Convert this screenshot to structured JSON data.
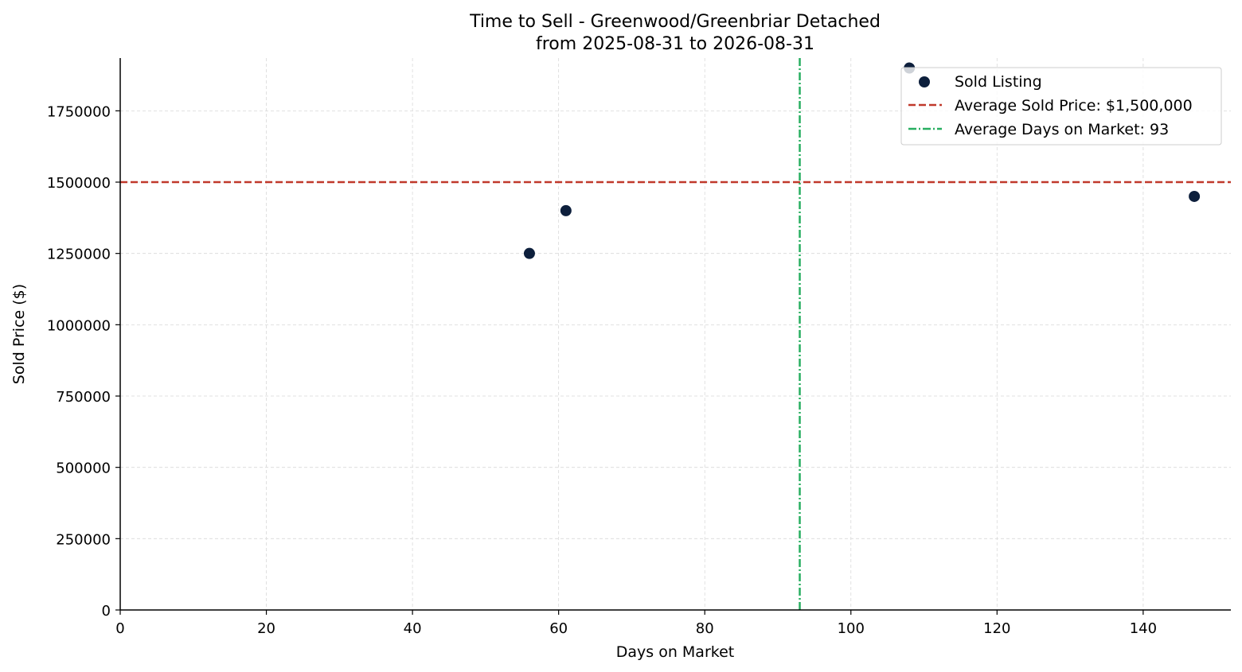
{
  "chart_data": {
    "type": "scatter",
    "title": "Time to Sell - Greenwood/Greenbriar Detached",
    "subtitle": "from 2025-08-31 to 2026-08-31",
    "xlabel": "Days on Market",
    "ylabel": "Sold Price ($)",
    "xlim": [
      0,
      152
    ],
    "ylim": [
      0,
      1935000
    ],
    "xticks": [
      0,
      20,
      40,
      60,
      80,
      100,
      120,
      140
    ],
    "yticks": [
      0,
      250000,
      500000,
      750000,
      1000000,
      1250000,
      1500000,
      1750000
    ],
    "grid": true,
    "legend_position": "top-right",
    "series": [
      {
        "name": "Sold Listing",
        "color": "#0d1f3c",
        "points": [
          {
            "x": 56,
            "y": 1250000
          },
          {
            "x": 61,
            "y": 1400000
          },
          {
            "x": 108,
            "y": 1900000
          },
          {
            "x": 147,
            "y": 1450000
          }
        ]
      }
    ],
    "reference_lines": [
      {
        "name": "Average Sold Price: $1,500,000",
        "orientation": "horizontal",
        "value": 1500000,
        "color": "#c0392b",
        "style": "dashed"
      },
      {
        "name": "Average Days on Market: 93",
        "orientation": "vertical",
        "value": 93,
        "color": "#27ae60",
        "style": "dashdot"
      }
    ]
  }
}
